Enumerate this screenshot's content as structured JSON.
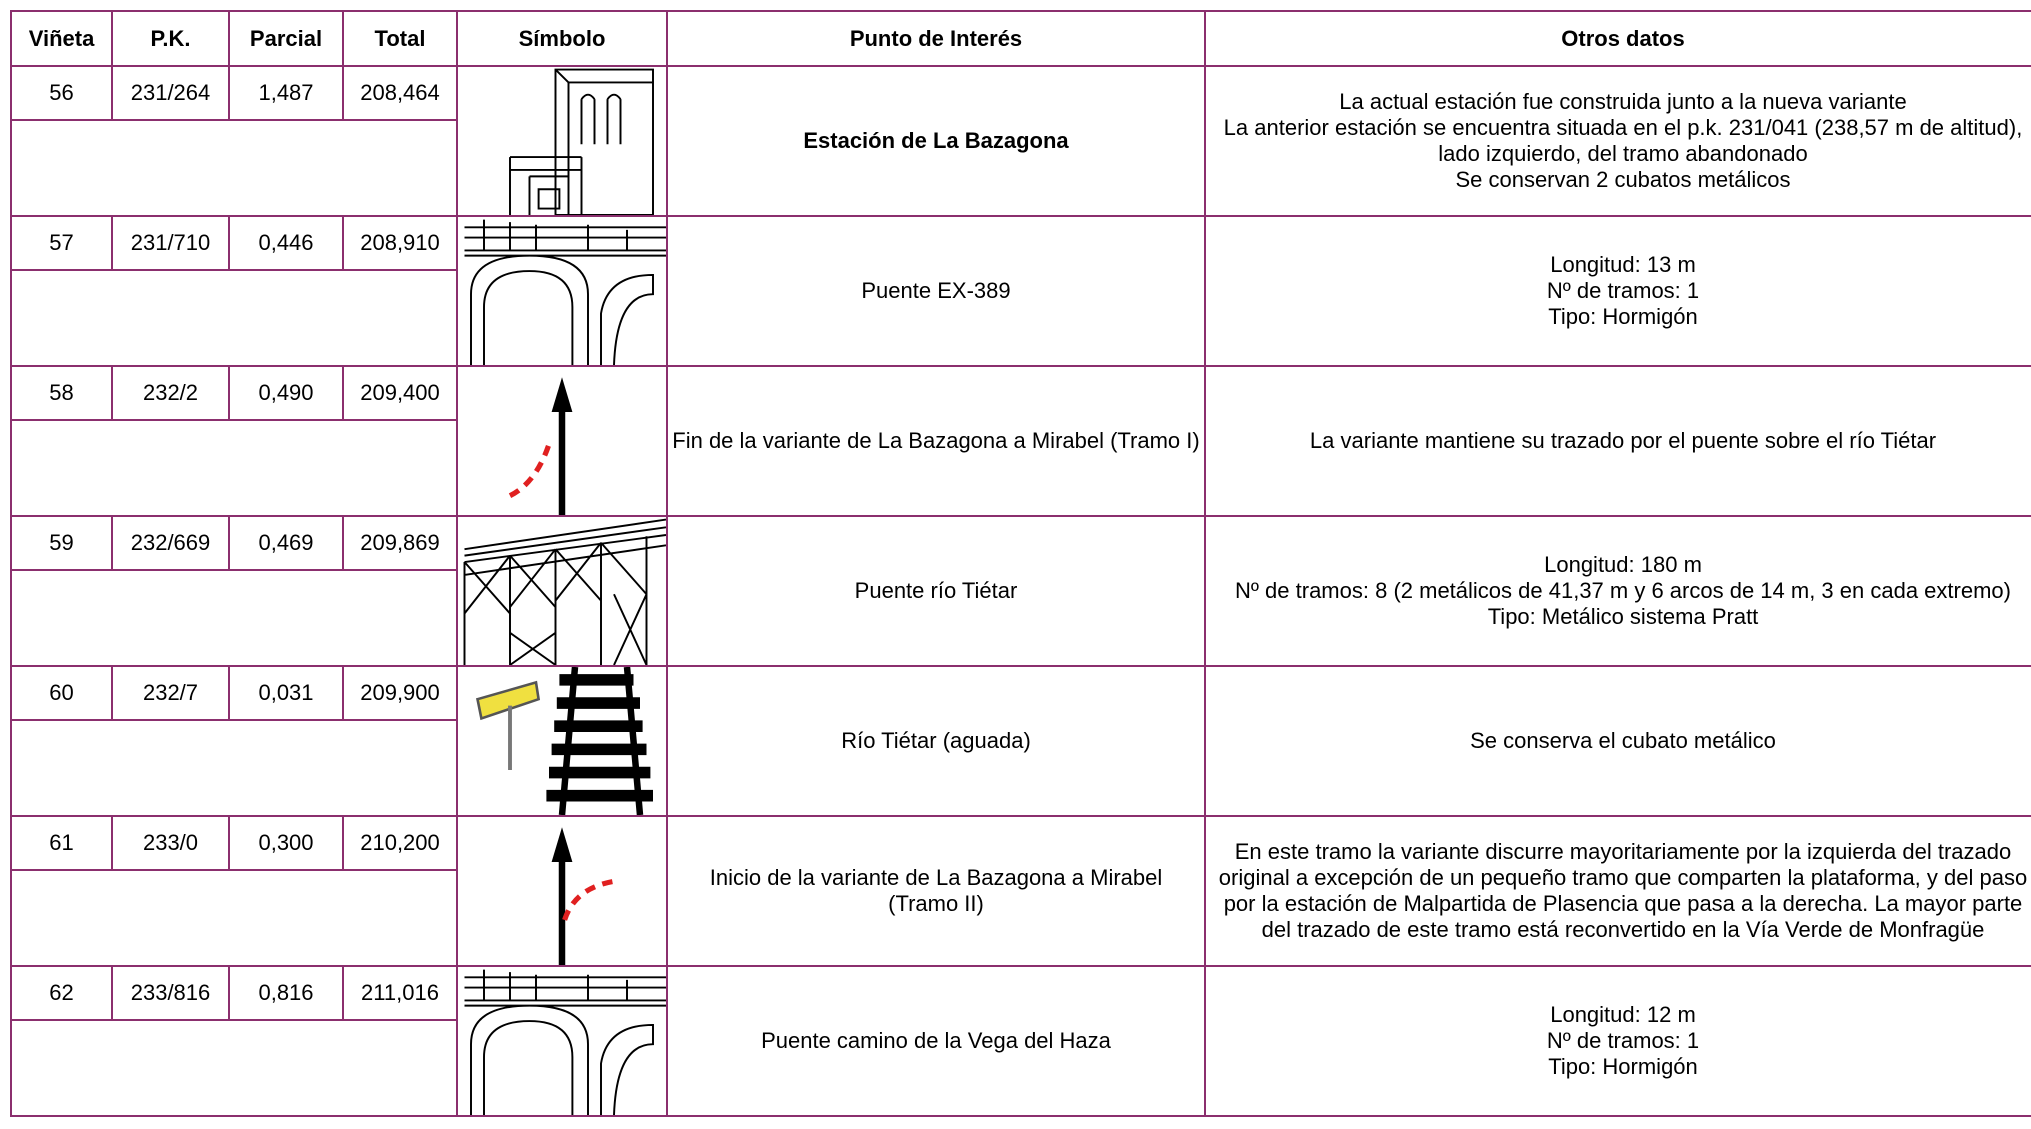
{
  "header": [
    "Viñeta",
    "P.K.",
    "Parcial",
    "Total",
    "Símbolo",
    "Punto de Interés",
    "Otros datos"
  ],
  "rows": [
    {
      "vineta": "56",
      "pk": "231/264",
      "parcial": "1,487",
      "total": "208,464",
      "punto": "Estación de La Bazagona",
      "bold": true,
      "otros": [
        "La actual estación fue construida junto a la nueva variante",
        "La anterior estación se encuentra situada en el p.k. 231/041 (238,57 m de altitud), lado izquierdo, del tramo abandonado",
        "Se conservan 2 cubatos metálicos"
      ]
    },
    {
      "vineta": "57",
      "pk": "231/710",
      "parcial": "0,446",
      "total": "208,910",
      "punto": "Puente EX-389",
      "otros": [
        "Longitud: 13 m",
        "Nº de tramos: 1",
        "Tipo: Hormigón"
      ]
    },
    {
      "vineta": "58",
      "pk": "232/2",
      "parcial": "0,490",
      "total": "209,400",
      "punto": "Fin de la variante de La Bazagona a Mirabel (Tramo I)",
      "otros": [
        "La variante mantiene su trazado por el puente sobre el río Tiétar"
      ]
    },
    {
      "vineta": "59",
      "pk": "232/669",
      "parcial": "0,469",
      "total": "209,869",
      "punto": "Puente río Tiétar",
      "otros": [
        "Longitud: 180 m",
        "Nº de tramos: 8 (2 metálicos de 41,37 m y 6 arcos de 14 m, 3 en cada extremo)",
        "Tipo: Metálico sistema Pratt"
      ]
    },
    {
      "vineta": "60",
      "pk": "232/7",
      "parcial": "0,031",
      "total": "209,900",
      "punto": "Río Tiétar (aguada)",
      "otros": [
        "Se conserva el cubato metálico"
      ]
    },
    {
      "vineta": "61",
      "pk": "233/0",
      "parcial": "0,300",
      "total": "210,200",
      "punto": "Inicio de la variante de La Bazagona a Mirabel (Tramo II)",
      "otros": [
        "En este tramo la variante discurre mayoritariamente por la izquierda del trazado original a excepción de un pequeño tramo que comparten la plataforma, y del paso por la estación de Malpartida de Plasencia que pasa a la derecha. La mayor parte del trazado de este tramo está reconvertido en la Vía Verde de Monfragüe"
      ]
    },
    {
      "vineta": "62",
      "pk": "233/816",
      "parcial": "0,816",
      "total": "211,016",
      "punto": "Puente camino de la Vega del Haza",
      "otros": [
        "Longitud: 12 m",
        "Nº de tramos: 1",
        "Tipo: Hormigón"
      ]
    }
  ]
}
